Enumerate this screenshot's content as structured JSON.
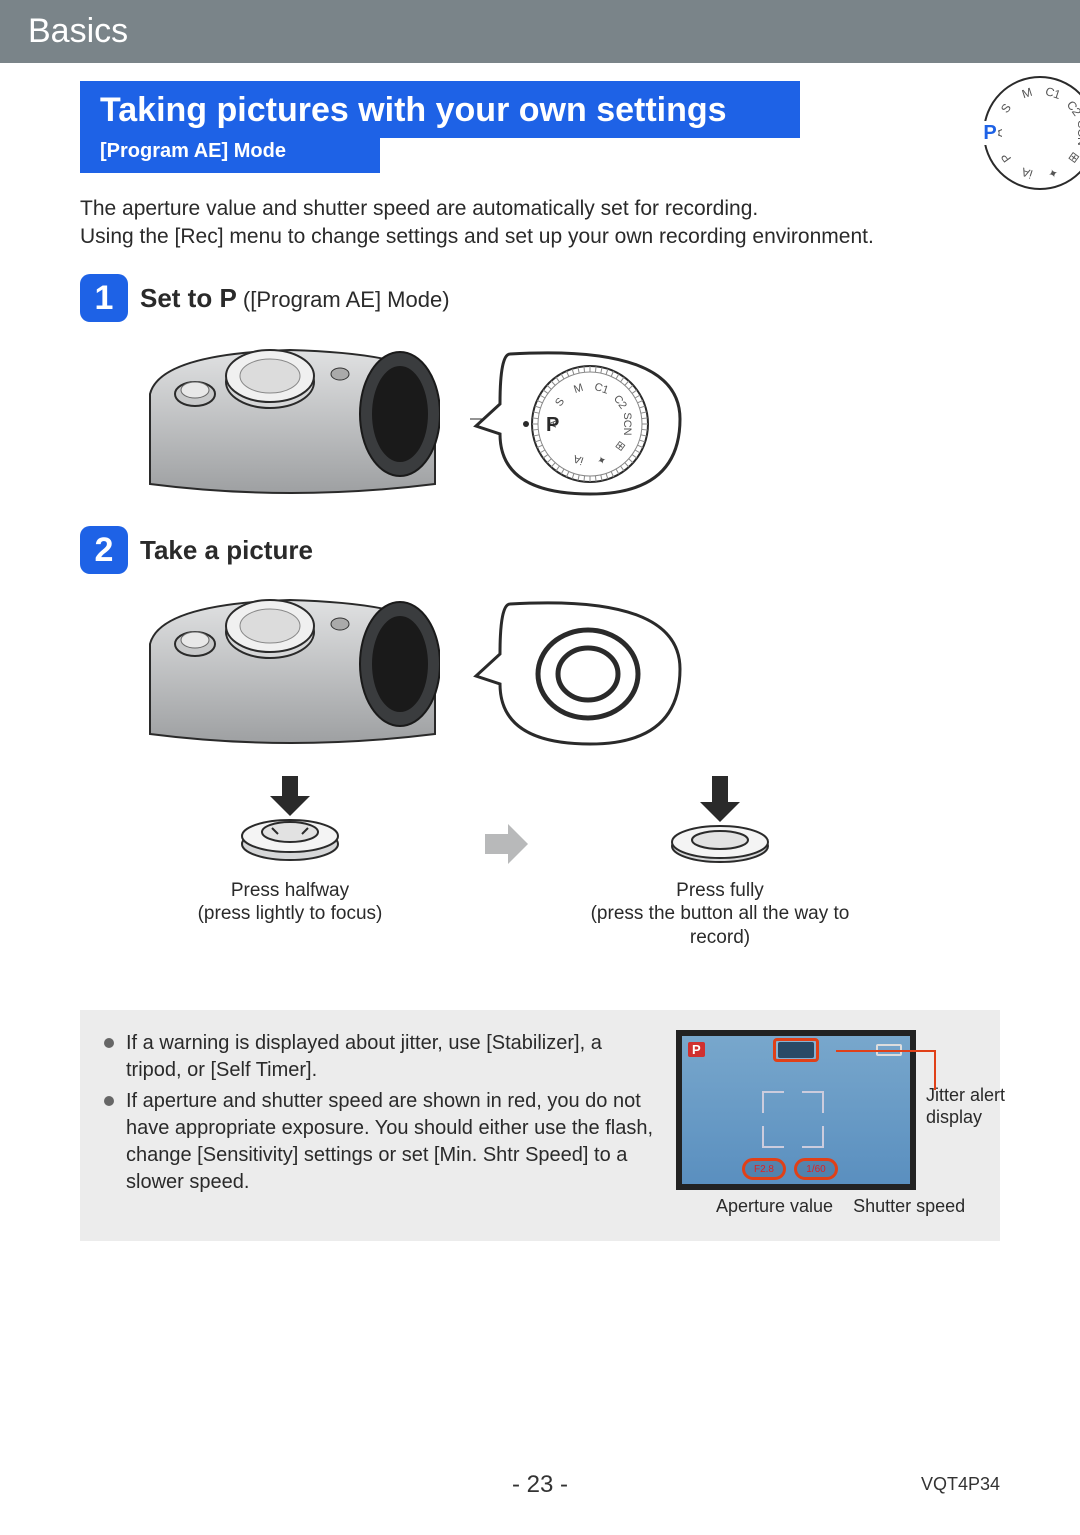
{
  "header": {
    "section": "Basics"
  },
  "title": {
    "main": "Taking pictures with your own settings",
    "sub": "[Program AE] Mode"
  },
  "modeDial": {
    "modes": [
      "A",
      "S",
      "M",
      "C1",
      "C2",
      "SCN",
      "⊞",
      "✦",
      "iA",
      "P"
    ],
    "highlighted": "P",
    "highlightColor": "#1e62e6",
    "bodyColor": "#f4f4f4",
    "textColor": "#2a2a2a"
  },
  "intro": {
    "line1": "The aperture value and shutter speed are automatically set for recording.",
    "line2": "Using the [Rec] menu to change settings and set up your own recording environment."
  },
  "steps": [
    {
      "num": "1",
      "titlePrefix": "Set to ",
      "titleModeGlyph": "P",
      "titleSuffix": " ([Program AE] Mode)",
      "illustration": "camera-top-with-dial-callout"
    },
    {
      "num": "2",
      "titlePrefix": "Take a picture",
      "illustration": "camera-top-with-shutter-callout"
    }
  ],
  "shutter": {
    "left": {
      "caption1": "Press halfway",
      "caption2": "(press lightly to focus)"
    },
    "right": {
      "caption1": "Press fully",
      "caption2": "(press the button all the way to record)"
    }
  },
  "notes": {
    "items": [
      "If a warning is displayed about jitter, use [Stabilizer], a tripod, or [Self Timer].",
      "If aperture and shutter speed are shown in red, you do not have appropriate exposure. You should either use the flash, change [Sensitivity] settings or set [Min. Shtr Speed] to a slower speed."
    ],
    "screen": {
      "pBadge": "P",
      "apertureText": "F2.8",
      "shutterText": "1/60",
      "jitterLabel": "Jitter alert display",
      "apertureLabel": "Aperture value",
      "shutterLabel": "Shutter speed",
      "highlightColor": "#e04018",
      "bgTop": "#78a7cc",
      "bgBottom": "#5a8fbf"
    }
  },
  "footer": {
    "page": "- 23 -",
    "docId": "VQT4P34"
  },
  "colors": {
    "headerBg": "#7a8489",
    "accent": "#1e62e6",
    "noteBg": "#ececec",
    "cameraBody": "#cfd1d2",
    "cameraShadow": "#8a8c8e"
  }
}
